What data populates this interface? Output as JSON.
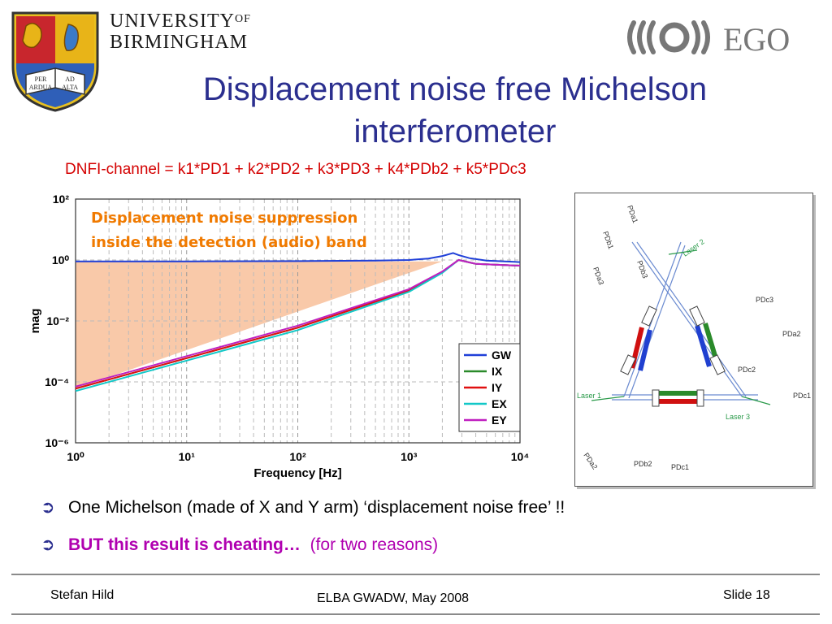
{
  "header": {
    "university_line1": "UNIVERSITY",
    "university_of": "OF",
    "university_line2": "BIRMINGHAM",
    "ego_text": "EGO"
  },
  "title": {
    "line1": "Displacement noise free Michelson",
    "line2": "interferometer"
  },
  "formula": "DNFI-channel = k1*PD1 + k2*PD2 + k3*PD3 + k4*PDb2 + k5*PDc3",
  "chart_data": {
    "type": "line",
    "xscale": "log",
    "yscale": "log",
    "xlim": [
      1,
      10000
    ],
    "ylim": [
      1e-06,
      100
    ],
    "xlabel": "Frequency [Hz]",
    "ylabel": "mag",
    "xtick_labels": [
      "10⁰",
      "10¹",
      "10²",
      "10³",
      "10⁴"
    ],
    "ytick_labels": [
      "10²",
      "10⁰",
      "10⁻²",
      "10⁻⁴",
      "10⁻⁶"
    ],
    "grid": true,
    "legend_position": "bottom-right",
    "annotation": [
      "Displacement noise suppression",
      "inside the detection (audio) band"
    ],
    "series": [
      {
        "name": "GW",
        "color": "#1f3fd8",
        "x": [
          1,
          10,
          100,
          500,
          1000,
          1500,
          2000,
          2500,
          2800,
          3500,
          5000,
          10000
        ],
        "y": [
          0.9,
          0.9,
          0.92,
          0.95,
          1.0,
          1.12,
          1.35,
          1.7,
          1.45,
          1.15,
          0.95,
          0.85
        ]
      },
      {
        "name": "IX",
        "color": "#2a8a2a",
        "x": [
          1,
          10,
          100,
          1000,
          2000,
          2800,
          4000,
          10000
        ],
        "y": [
          6e-05,
          0.0006,
          0.006,
          0.1,
          0.4,
          1.0,
          0.75,
          0.65
        ]
      },
      {
        "name": "IY",
        "color": "#e01010",
        "x": [
          1,
          10,
          100,
          1000,
          2000,
          2800,
          4000,
          10000
        ],
        "y": [
          6e-05,
          0.0006,
          0.006,
          0.1,
          0.4,
          1.0,
          0.75,
          0.65
        ]
      },
      {
        "name": "EX",
        "color": "#12c8c8",
        "x": [
          1,
          10,
          100,
          1000,
          2000,
          2800,
          4000,
          10000
        ],
        "y": [
          5e-05,
          0.0005,
          0.005,
          0.09,
          0.38,
          1.0,
          0.75,
          0.65
        ]
      },
      {
        "name": "EY",
        "color": "#c020c0",
        "x": [
          1,
          10,
          100,
          1000,
          2000,
          2800,
          4000,
          10000
        ],
        "y": [
          7e-05,
          0.0007,
          0.007,
          0.11,
          0.42,
          1.0,
          0.75,
          0.65
        ]
      }
    ]
  },
  "diagram": {
    "labels": [
      "PDa1",
      "PDb1",
      "PDb3",
      "PDa3",
      "Laser 2",
      "PDc3",
      "PDa2",
      "PDc2",
      "Laser 1",
      "Laser 3",
      "PDc1",
      "PDa2",
      "PDb2",
      "PDc1"
    ]
  },
  "bullets": [
    {
      "text": "One Michelson (made of X and Y arm) ‘displacement noise free’ !!"
    },
    {
      "strong": "BUT this result is cheating…",
      "note": "(for two reasons)"
    }
  ],
  "footer": {
    "author": "Stefan Hild",
    "event": "ELBA GWADW, May 2008",
    "slide": "Slide 18"
  }
}
